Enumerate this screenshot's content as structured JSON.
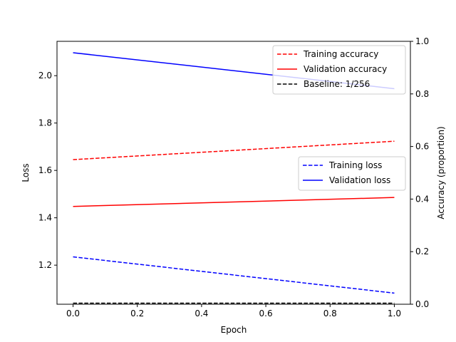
{
  "chart_data": {
    "type": "line",
    "title": "",
    "x": [
      0.0,
      1.0
    ],
    "xlabel": "Epoch",
    "xlim": [
      -0.05,
      1.05
    ],
    "xticks": [
      0.0,
      0.2,
      0.4,
      0.6,
      0.8,
      1.0
    ],
    "xtick_labels": [
      "0.0",
      "0.2",
      "0.4",
      "0.6",
      "0.8",
      "1.0"
    ],
    "left_axis": {
      "label": "Loss",
      "ylim": [
        1.035,
        2.145
      ],
      "ticks": [
        1.2,
        1.4,
        1.6,
        1.8,
        2.0
      ],
      "tick_labels": [
        "1.2",
        "1.4",
        "1.6",
        "1.8",
        "2.0"
      ]
    },
    "right_axis": {
      "label": "Accuracy (proportion)",
      "ylim": [
        0.0,
        1.0
      ],
      "ticks": [
        0.0,
        0.2,
        0.4,
        0.6,
        0.8,
        1.0
      ],
      "tick_labels": [
        "0.0",
        "0.2",
        "0.4",
        "0.6",
        "0.8",
        "1.0"
      ]
    },
    "series": [
      {
        "name": "Training accuracy",
        "axis": "right",
        "color": "#ff0000",
        "dash": "dashed",
        "values": [
          0.55,
          0.62
        ]
      },
      {
        "name": "Validation accuracy",
        "axis": "right",
        "color": "#ff0000",
        "dash": "solid",
        "values": [
          0.372,
          0.406
        ]
      },
      {
        "name": "Baseline: 1/256",
        "axis": "right",
        "color": "#000000",
        "dash": "dashed",
        "values": [
          0.0039,
          0.0039
        ]
      },
      {
        "name": "Training loss",
        "axis": "left",
        "color": "#0000ff",
        "dash": "dashed",
        "values": [
          1.235,
          1.082
        ]
      },
      {
        "name": "Validation loss",
        "axis": "left",
        "color": "#0000ff",
        "dash": "solid",
        "values": [
          2.097,
          1.945
        ]
      }
    ],
    "legends": [
      {
        "placement": "upper-right",
        "entries": [
          "Training accuracy",
          "Validation accuracy",
          "Baseline: 1/256"
        ]
      },
      {
        "placement": "center-right",
        "entries": [
          "Training loss",
          "Validation loss"
        ]
      }
    ],
    "grid": false
  }
}
